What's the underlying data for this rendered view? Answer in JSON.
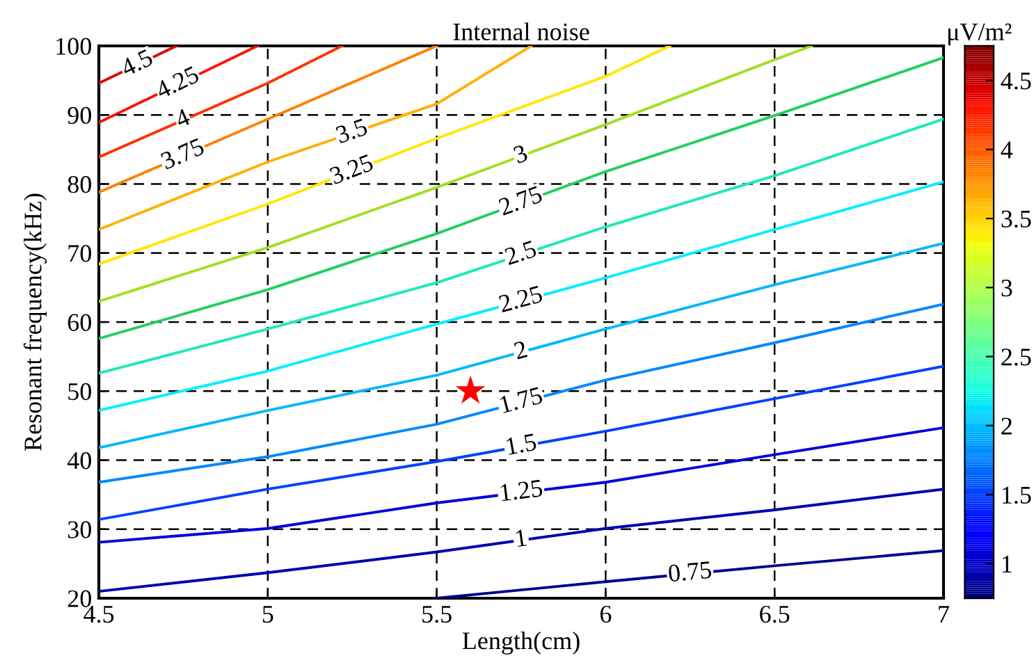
{
  "chart_data": {
    "type": "line",
    "title": "Internal noise",
    "xlabel": "Length(cm)",
    "ylabel": "Resonant frequency(kHz)",
    "clabel": "μV/m²",
    "xlim": [
      4.5,
      7
    ],
    "xticks": [
      4.5,
      5,
      5.5,
      6,
      6.5,
      7
    ],
    "ylim": [
      20,
      100
    ],
    "yticks": [
      20,
      30,
      40,
      50,
      60,
      70,
      80,
      90,
      100
    ],
    "grid": true,
    "clim": [
      0.75,
      4.75
    ],
    "cticks": [
      1,
      1.5,
      2,
      2.5,
      3,
      3.5,
      4,
      4.5
    ],
    "legend": false,
    "series": [
      {
        "name": "0.75",
        "color": "#000090",
        "x": [
          5.5,
          6,
          6.5,
          7
        ],
        "values": [
          20,
          22.4,
          24.7,
          26.9
        ]
      },
      {
        "name": "1",
        "color": "#0000b0",
        "x": [
          4.5,
          5,
          5.5,
          6,
          6.5,
          7
        ],
        "values": [
          21.0,
          23.7,
          26.7,
          30.1,
          32.8,
          35.8
        ]
      },
      {
        "name": "1.25",
        "color": "#0000dd",
        "x": [
          4.5,
          5,
          5.5,
          6,
          6.5,
          7
        ],
        "values": [
          28.1,
          30.1,
          33.8,
          36.8,
          40.8,
          44.7
        ]
      },
      {
        "name": "1.5",
        "color": "#0040ff",
        "x": [
          4.5,
          5,
          5.5,
          6,
          6.5,
          7
        ],
        "values": [
          31.4,
          35.8,
          39.8,
          44.2,
          48.9,
          53.6
        ]
      },
      {
        "name": "1.75",
        "color": "#0088ff",
        "x": [
          4.5,
          5,
          5.5,
          6,
          6.5,
          7
        ],
        "values": [
          36.8,
          40.5,
          45.2,
          51.6,
          57.0,
          62.6
        ]
      },
      {
        "name": "2",
        "color": "#00b8ff",
        "x": [
          4.5,
          5,
          5.5,
          6,
          6.5,
          7
        ],
        "values": [
          41.8,
          47.2,
          52.3,
          59.0,
          65.4,
          71.4
        ]
      },
      {
        "name": "2.25",
        "color": "#00eeff",
        "x": [
          4.5,
          5,
          5.5,
          6,
          6.5,
          7
        ],
        "values": [
          47.2,
          52.9,
          59.7,
          66.4,
          73.4,
          80.3
        ]
      },
      {
        "name": "2.5",
        "color": "#20e8b8",
        "x": [
          4.5,
          5,
          5.5,
          6,
          6.5,
          7
        ],
        "values": [
          52.6,
          59.0,
          65.7,
          73.8,
          81.2,
          89.4
        ]
      },
      {
        "name": "2.75",
        "color": "#20d060",
        "x": [
          4.5,
          5,
          5.5,
          6,
          6.5,
          7
        ],
        "values": [
          57.6,
          64.7,
          72.8,
          81.8,
          89.9,
          98.3
        ]
      },
      {
        "name": "3",
        "color": "#a0e020",
        "x": [
          4.5,
          5,
          5.5,
          6,
          6.5,
          6.61
        ],
        "values": [
          63.0,
          70.8,
          79.5,
          88.6,
          98,
          100
        ]
      },
      {
        "name": "3.25",
        "color": "#ffe600",
        "x": [
          4.5,
          5,
          5.5,
          6,
          6.19
        ],
        "values": [
          68.4,
          77.1,
          86.6,
          95.6,
          100
        ]
      },
      {
        "name": "3.5",
        "color": "#ffb000",
        "x": [
          4.5,
          5,
          5.5,
          5.78
        ],
        "values": [
          73.4,
          83.2,
          91.6,
          100
        ]
      },
      {
        "name": "3.75",
        "color": "#ff8000",
        "x": [
          4.5,
          5,
          5.5
        ],
        "values": [
          78.8,
          89.4,
          100
        ]
      },
      {
        "name": "4",
        "color": "#ff3000",
        "x": [
          4.5,
          5,
          5.22
        ],
        "values": [
          83.9,
          94.6,
          100
        ]
      },
      {
        "name": "4.25",
        "color": "#ff1000",
        "x": [
          4.5,
          4.97
        ],
        "values": [
          88.9,
          100
        ]
      },
      {
        "name": "4.5",
        "color": "#e00000",
        "x": [
          4.5,
          4.73
        ],
        "values": [
          94.6,
          100
        ]
      },
      {
        "type": "scatter",
        "color": "#ff0000",
        "marker": "star",
        "x": [
          5.6
        ],
        "values": [
          50
        ]
      }
    ]
  }
}
